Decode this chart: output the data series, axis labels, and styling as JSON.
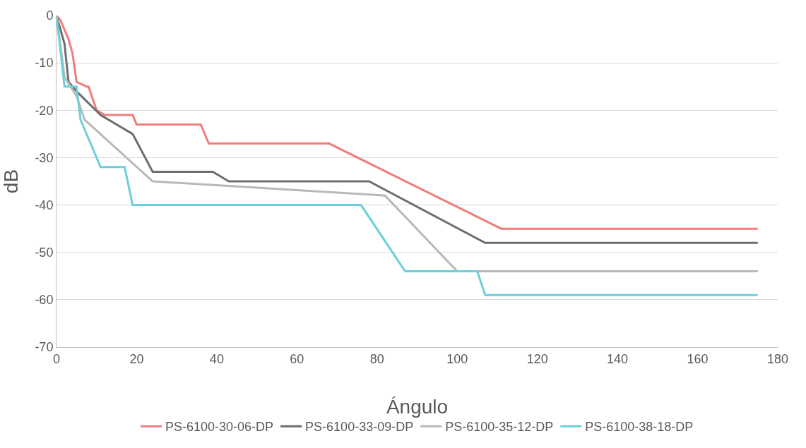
{
  "chart_data": {
    "type": "line",
    "xlabel": "Ángulo",
    "ylabel": "dB",
    "xlim": [
      0,
      180
    ],
    "xticks": [
      0,
      20,
      40,
      60,
      80,
      100,
      120,
      140,
      160,
      180
    ],
    "ylim": [
      -70,
      0
    ],
    "yticks": [
      -70,
      -60,
      -50,
      -40,
      -30,
      -20,
      -10,
      0
    ],
    "grid": "y",
    "legend": "bottom",
    "marker": "none",
    "line_style": "solid",
    "series": [
      {
        "name": "PS-6100-30-06-DP",
        "color": "#f07d7d",
        "x": [
          0,
          1,
          2,
          3,
          4,
          5,
          7.5,
          8,
          10,
          12,
          19,
          20,
          36,
          38,
          68,
          111,
          175
        ],
        "values": [
          0,
          -1,
          -3,
          -5,
          -8,
          -14,
          -15,
          -15,
          -20,
          -21,
          -21,
          -23,
          -23,
          -27,
          -27,
          -45,
          -45
        ]
      },
      {
        "name": "PS-6100-33-09-DP",
        "color": "#6d6e71",
        "x": [
          0,
          2,
          3,
          4,
          5,
          11,
          19,
          24,
          39,
          43,
          78,
          107,
          175
        ],
        "values": [
          0,
          -6,
          -14,
          -15,
          -16,
          -21,
          -25,
          -33,
          -33,
          -35,
          -35,
          -48,
          -48
        ]
      },
      {
        "name": "PS-6100-35-12-DP",
        "color": "#b8b8b8",
        "x": [
          0,
          2,
          5,
          7,
          24,
          82,
          100,
          175
        ],
        "values": [
          0,
          -13,
          -17,
          -22,
          -35,
          -38,
          -54,
          -54
        ]
      },
      {
        "name": "PS-6100-38-18-DP",
        "color": "#6ccfd9",
        "x": [
          0,
          2,
          5,
          6,
          11,
          17,
          19,
          76,
          87,
          105,
          107,
          175
        ],
        "values": [
          0,
          -15,
          -15,
          -22,
          -32,
          -32,
          -40,
          -40,
          -54,
          -54,
          -59,
          -59
        ]
      }
    ]
  }
}
